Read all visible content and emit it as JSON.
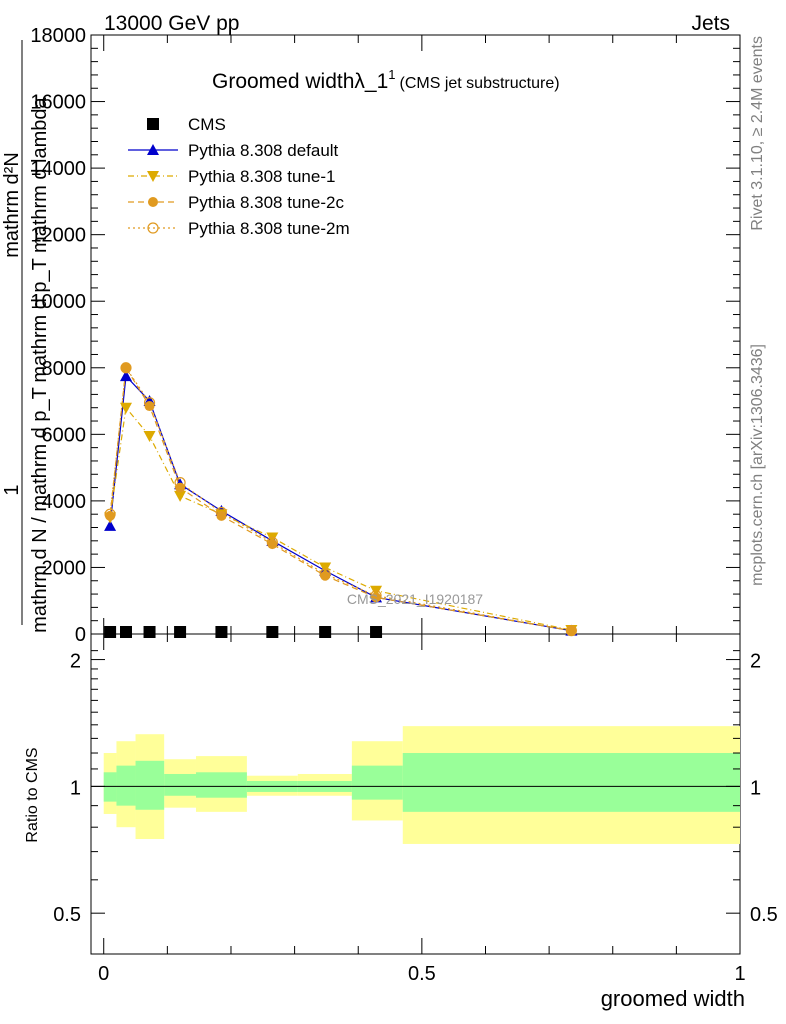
{
  "header": {
    "energy_label": "13000 GeV pp",
    "category_label": "Jets"
  },
  "side_labels": {
    "rivet_info": "Rivet 3.1.10, ≥ 2.4M events",
    "mcplots_info": "mcplots.cern.ch [arXiv:1306.3436]"
  },
  "watermark": "CMS_2021_I1920187",
  "chart_data": [
    {
      "type": "line",
      "title": "Groomed widthλ_1",
      "title_superscript": "1",
      "subtitle": "(CMS jet substructure)",
      "ylabel_numerator": "mathrm d²N",
      "ylabel_denominator": "mathrm d p_T mathrm d lambda",
      "ylabel_prefix_num": "1",
      "ylabel_prefix_den": "mathrm d N / mathrm d p_T",
      "xlim": [
        -0.02,
        1.0
      ],
      "ylim": [
        0,
        18000
      ],
      "yticks": [
        0,
        2000,
        4000,
        6000,
        8000,
        10000,
        12000,
        14000,
        16000,
        18000
      ],
      "ytick_labels": [
        "0",
        "2000",
        "4000",
        "6000",
        "8000",
        "10000",
        "12000",
        "14000",
        "16000",
        "18000"
      ],
      "legend_position": "top-left",
      "series": [
        {
          "name": "CMS",
          "color": "#000000",
          "marker": "square",
          "x": [
            0.01,
            0.035,
            0.072,
            0.12,
            0.185,
            0.265,
            0.348,
            0.428
          ],
          "y": [
            0,
            0,
            0,
            0,
            0,
            0,
            0,
            0
          ]
        },
        {
          "name": "Pythia 8.308 default",
          "color": "#0000cc",
          "marker": "triangle-up",
          "line": "solid",
          "x": [
            0.01,
            0.035,
            0.072,
            0.12,
            0.185,
            0.265,
            0.348,
            0.428,
            0.735
          ],
          "y": [
            3250,
            7750,
            7000,
            4500,
            3700,
            2800,
            1900,
            1100,
            100
          ]
        },
        {
          "name": "Pythia 8.308 tune-1",
          "color": "#ddaa00",
          "marker": "triangle-down",
          "line": "dashdot",
          "x": [
            0.01,
            0.035,
            0.072,
            0.12,
            0.185,
            0.265,
            0.348,
            0.428,
            0.735
          ],
          "y": [
            3500,
            6800,
            5950,
            4150,
            3600,
            2900,
            2000,
            1300,
            120
          ]
        },
        {
          "name": "Pythia 8.308 tune-2c",
          "color": "#e09a20",
          "marker": "circle-filled",
          "line": "dashed",
          "x": [
            0.01,
            0.035,
            0.072,
            0.12,
            0.185,
            0.265,
            0.348,
            0.428,
            0.735
          ],
          "y": [
            3550,
            8000,
            6850,
            4400,
            3550,
            2700,
            1750,
            1100,
            100
          ]
        },
        {
          "name": "Pythia 8.308 tune-2m",
          "color": "#e09a20",
          "marker": "circle-open",
          "line": "dotted",
          "x": [
            0.01,
            0.035,
            0.072,
            0.12,
            0.185,
            0.265,
            0.348,
            0.428,
            0.735
          ],
          "y": [
            3600,
            8000,
            6950,
            4550,
            3650,
            2750,
            1800,
            1150,
            100
          ]
        }
      ]
    },
    {
      "type": "area",
      "ylabel": "Ratio to CMS",
      "xlabel": "groomed width",
      "xlim": [
        -0.02,
        1.0
      ],
      "ylim": [
        0.4,
        2.3
      ],
      "scale": "log",
      "yticks": [
        0.5,
        1,
        2
      ],
      "ytick_labels": [
        "0.5",
        "1",
        "2"
      ],
      "xticks": [
        0,
        0.5,
        1
      ],
      "xtick_labels": [
        "0",
        "0.5",
        "1"
      ],
      "reference_line": 1,
      "bins": [
        0.0,
        0.02,
        0.05,
        0.095,
        0.145,
        0.225,
        0.305,
        0.39,
        0.47,
        1.0
      ],
      "band_inner": {
        "color": "#99ff99",
        "lo": [
          0.92,
          0.9,
          0.88,
          0.95,
          0.94,
          0.97,
          0.97,
          0.93,
          0.87
        ],
        "hi": [
          1.08,
          1.12,
          1.15,
          1.07,
          1.08,
          1.03,
          1.03,
          1.12,
          1.2
        ]
      },
      "band_outer": {
        "color": "#ffff99",
        "lo": [
          0.86,
          0.8,
          0.75,
          0.89,
          0.87,
          0.95,
          0.95,
          0.83,
          0.73
        ],
        "hi": [
          1.2,
          1.28,
          1.33,
          1.16,
          1.18,
          1.06,
          1.07,
          1.28,
          1.39
        ]
      }
    }
  ]
}
